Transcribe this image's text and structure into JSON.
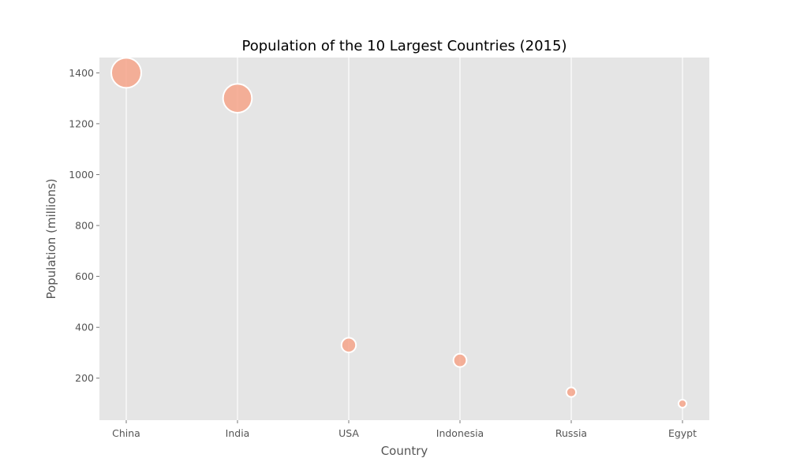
{
  "chart_data": {
    "type": "scatter",
    "title": "Population of the 10 Largest Countries (2015)",
    "xlabel": "Country",
    "ylabel": "Population (millions)",
    "categories": [
      "China",
      "India",
      "USA",
      "Indonesia",
      "Russia",
      "Egypt"
    ],
    "values": [
      1400,
      1300,
      330,
      270,
      145,
      100
    ],
    "yticks": [
      200,
      400,
      600,
      800,
      1000,
      1200,
      1400
    ],
    "ylim": [
      35,
      1460
    ],
    "grid": true,
    "legend": "none",
    "colors": {
      "plot_background": "#e5e5e5",
      "grid": "#ffffff",
      "bubble_fill": "#f6a58a",
      "bubble_stroke": "#ffffff",
      "tick_text": "#555555",
      "title_text": "#000000"
    }
  }
}
